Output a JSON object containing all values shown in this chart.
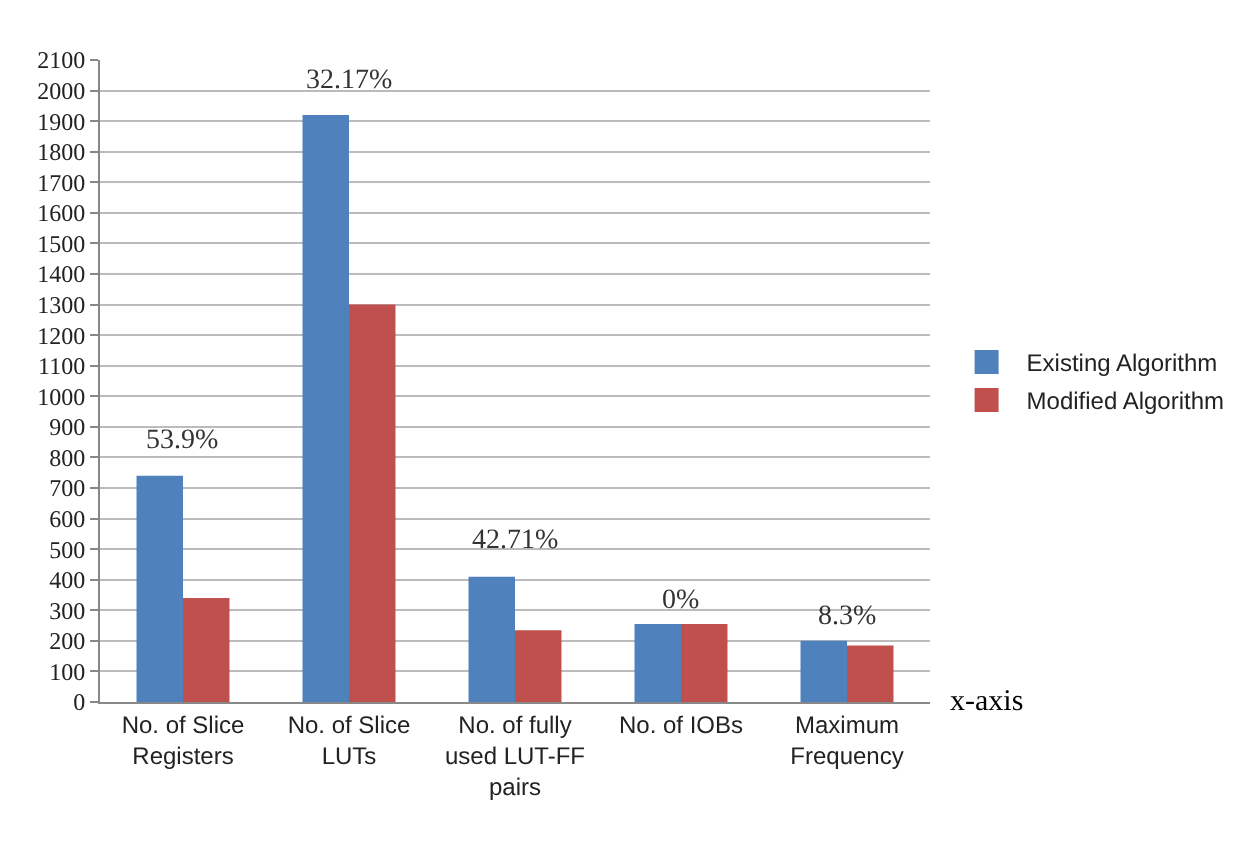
{
  "chart_data": {
    "type": "bar",
    "xlabel": "x-axis",
    "categories": [
      "No. of Slice Registers",
      "No. of Slice LUTs",
      "No. of fully used LUT-FF pairs",
      "No. of IOBs",
      "Maximum Frequency"
    ],
    "series": [
      {
        "name": "Existing Algorithm",
        "color": "#4f81bd",
        "values": [
          740,
          1920,
          410,
          255,
          200
        ]
      },
      {
        "name": "Modified Algorithm",
        "color": "#c0504d",
        "values": [
          340,
          1300,
          235,
          255,
          185
        ]
      }
    ],
    "annotations": [
      "53.9%",
      "32.17%",
      "42.71%",
      "0%",
      "8.3%"
    ],
    "ylim": [
      0,
      2100
    ],
    "yticks": [
      0,
      100,
      200,
      300,
      400,
      500,
      600,
      700,
      800,
      900,
      1000,
      1100,
      1200,
      1300,
      1400,
      1500,
      1600,
      1700,
      1800,
      1900,
      2000,
      2100
    ],
    "grid": "y",
    "legend": "right"
  }
}
